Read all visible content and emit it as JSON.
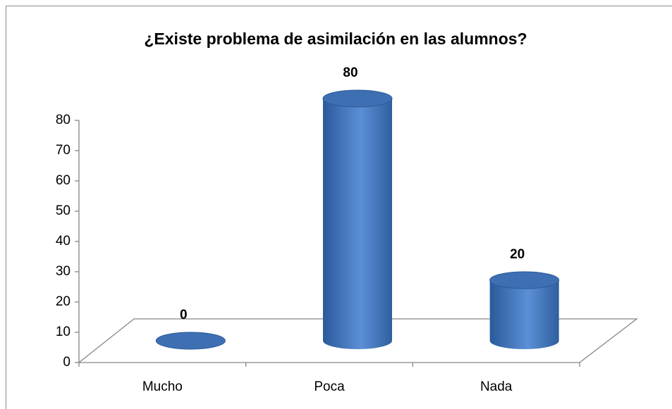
{
  "chart_data": {
    "type": "bar",
    "title": "¿Existe problema de asimilación en las alumnos?",
    "categories": [
      "Mucho",
      "Poca",
      "Nada"
    ],
    "values": [
      0,
      80,
      20
    ],
    "color": "#4a7ec6",
    "ylim": [
      0,
      80
    ],
    "yticks": [
      0,
      10,
      20,
      30,
      40,
      50,
      60,
      70,
      80
    ],
    "grid": false
  }
}
